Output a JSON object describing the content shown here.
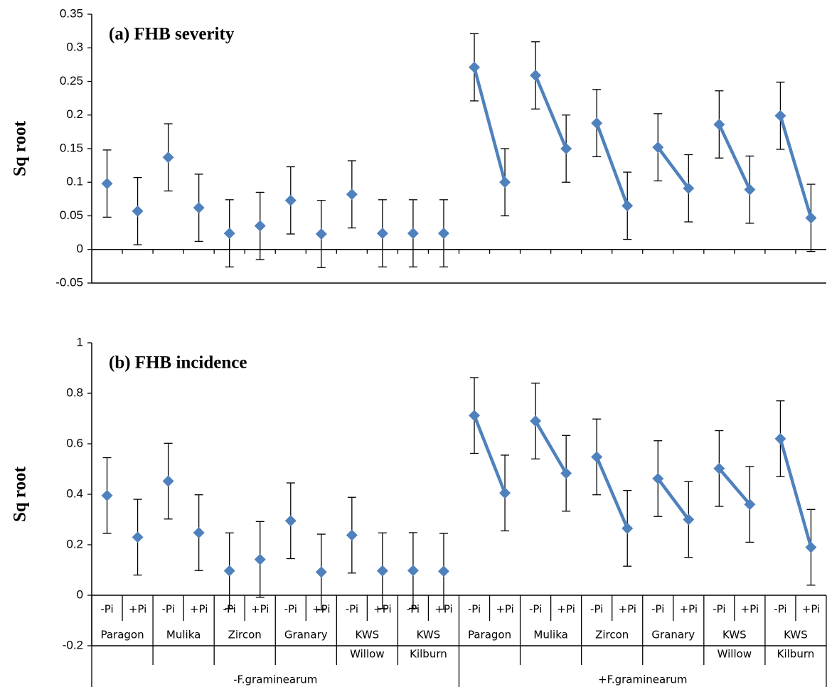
{
  "chart_data": [
    {
      "type": "errorbar",
      "title": "(a) FHB severity",
      "ylabel": "Sq root",
      "color": "#4f81bd",
      "ylim": [
        -0.05,
        0.35
      ],
      "yticks": [
        -0.05,
        0,
        0.05,
        0.1,
        0.15,
        0.2,
        0.25,
        0.3,
        0.35
      ],
      "values": [
        0.098,
        0.057,
        0.137,
        0.062,
        0.024,
        0.035,
        0.073,
        0.023,
        0.082,
        0.024,
        0.024,
        0.024,
        0.271,
        0.1,
        0.259,
        0.15,
        0.188,
        0.065,
        0.152,
        0.091,
        0.186,
        0.089,
        0.199,
        0.047
      ],
      "errors": [
        0.05,
        0.05,
        0.05,
        0.05,
        0.05,
        0.05,
        0.05,
        0.05,
        0.05,
        0.05,
        0.05,
        0.05,
        0.05,
        0.05,
        0.05,
        0.05,
        0.05,
        0.05,
        0.05,
        0.05,
        0.05,
        0.05,
        0.05,
        0.05
      ]
    },
    {
      "type": "errorbar",
      "title": "(b) FHB incidence",
      "ylabel": "Sq root",
      "color": "#4f81bd",
      "ylim": [
        -0.2,
        1
      ],
      "yticks": [
        -0.2,
        0,
        0.2,
        0.4,
        0.6,
        0.8,
        1
      ],
      "values": [
        0.395,
        0.23,
        0.452,
        0.248,
        0.097,
        0.142,
        0.295,
        0.092,
        0.238,
        0.097,
        0.098,
        0.095,
        0.712,
        0.405,
        0.69,
        0.483,
        0.548,
        0.265,
        0.462,
        0.3,
        0.502,
        0.36,
        0.62,
        0.19
      ],
      "errors": [
        0.15,
        0.15,
        0.15,
        0.15,
        0.15,
        0.15,
        0.15,
        0.15,
        0.15,
        0.15,
        0.15,
        0.15,
        0.15,
        0.15,
        0.15,
        0.15,
        0.15,
        0.15,
        0.15,
        0.15,
        0.15,
        0.15,
        0.15,
        0.15
      ],
      "categories": [
        "-Pi",
        "+Pi",
        "-Pi",
        "+Pi",
        "-Pi",
        "+Pi",
        "-Pi",
        "+Pi",
        "-Pi",
        "+Pi",
        "-Pi",
        "+Pi",
        "-Pi",
        "+Pi",
        "-Pi",
        "+Pi",
        "-Pi",
        "+Pi",
        "-Pi",
        "+Pi",
        "-Pi",
        "+Pi",
        "-Pi",
        "+Pi"
      ],
      "cultivars": [
        [
          "Paragon"
        ],
        [
          "Mulika"
        ],
        [
          "Zircon"
        ],
        [
          "Granary"
        ],
        [
          "KWS",
          "Willow"
        ],
        [
          "KWS",
          "Kilburn"
        ],
        [
          "Paragon"
        ],
        [
          "Mulika"
        ],
        [
          "Zircon"
        ],
        [
          "Granary"
        ],
        [
          "KWS",
          "Willow"
        ],
        [
          "KWS",
          "Kilburn"
        ]
      ],
      "treatments": [
        {
          "label": "-F.graminearum",
          "connected": false
        },
        {
          "label": "+F.graminearum",
          "connected": true
        }
      ]
    }
  ]
}
